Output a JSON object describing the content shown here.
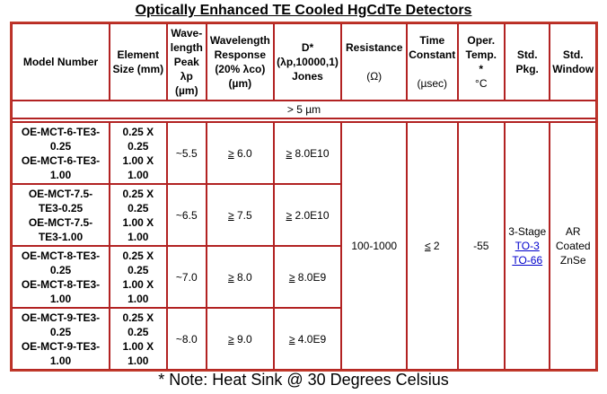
{
  "title": "Optically Enhanced TE Cooled HgCdTe Detectors",
  "headers": {
    "model": "Model Number",
    "element_1": "Element",
    "element_2": "Size (mm)",
    "wave_1": "Wave-",
    "wave_2": "length",
    "wave_3": "Peak",
    "wave_4": "λp",
    "wave_5": "(µm)",
    "resp_1": "Wavelength",
    "resp_2": "Response",
    "resp_3": "(20% λco)",
    "resp_4": "(µm)",
    "d_1": "D*",
    "d_2": "(λp,10000,1)",
    "d_3": "Jones",
    "res_1": "Resistance",
    "res_2": "(Ω)",
    "time_1": "Time",
    "time_2": "Constant",
    "time_3": "(µsec)",
    "oper_1": "Oper.",
    "oper_2": "Temp.",
    "oper_3": "*",
    "oper_4": "°C",
    "pkg_1": "Std.",
    "pkg_2": "Pkg.",
    "win_1": "Std.",
    "win_2": "Window"
  },
  "band": "> 5 µm",
  "rows": [
    {
      "model": [
        "OE-MCT-6-TE3-",
        "0.25",
        "OE-MCT-6-TE3-",
        "1.00"
      ],
      "size": [
        "0.25 X",
        "0.25",
        "1.00 X",
        "1.00"
      ],
      "peak": "~5.5",
      "resp_sym": "≥",
      "resp": " 6.0",
      "d_sym": "≥",
      "d": " 8.0E10"
    },
    {
      "model": [
        "OE-MCT-7.5-",
        "TE3-0.25",
        "OE-MCT-7.5-",
        "TE3-1.00"
      ],
      "size": [
        "0.25 X",
        "0.25",
        "1.00 X",
        "1.00"
      ],
      "peak": "~6.5",
      "resp_sym": "≥",
      "resp": " 7.5",
      "d_sym": "≥",
      "d": " 2.0E10"
    },
    {
      "model": [
        "OE-MCT-8-TE3-",
        "0.25",
        "OE-MCT-8-TE3-",
        "1.00"
      ],
      "size": [
        "0.25 X",
        "0.25",
        "1.00 X",
        "1.00"
      ],
      "peak": "~7.0",
      "resp_sym": "≥",
      "resp": " 8.0",
      "d_sym": "≥",
      "d": " 8.0E9"
    },
    {
      "model": [
        "OE-MCT-9-TE3-",
        "0.25",
        "OE-MCT-9-TE3-",
        "1.00"
      ],
      "size": [
        "0.25 X",
        "0.25",
        "1.00 X",
        "1.00"
      ],
      "peak": "~8.0",
      "resp_sym": "≥",
      "resp": " 9.0",
      "d_sym": "≥",
      "d": " 4.0E9"
    }
  ],
  "shared": {
    "resistance": "100-1000",
    "time_sym": "≤",
    "time": " 2",
    "temp": "-55",
    "pkg": "3-Stage",
    "pkg_link1": "TO-3",
    "pkg_link2": "TO-66",
    "window": [
      "AR",
      "Coated",
      "ZnSe"
    ]
  },
  "note": "* Note: Heat Sink @ 30 Degrees Celsius",
  "colors": {
    "border": "#b22222",
    "link": "#0000cc"
  }
}
